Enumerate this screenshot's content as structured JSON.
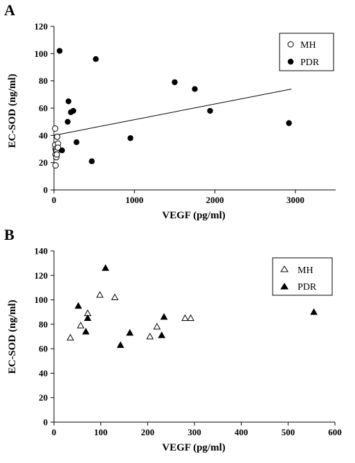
{
  "chart_data": [
    {
      "panel": "A",
      "type": "scatter",
      "xlabel": "VEGF (pg/ml)",
      "ylabel": "EC-SOD (ng/ml)",
      "xlim": [
        0,
        3500
      ],
      "ylim": [
        0,
        120
      ],
      "xticks": [
        "0",
        "1000",
        "2000",
        "3000"
      ],
      "yticks": [
        "0",
        "20",
        "40",
        "60",
        "80",
        "100",
        "120"
      ],
      "grid": false,
      "legend_position": "top-right",
      "series": [
        {
          "name": "MH",
          "marker": "open-circle",
          "points": [
            [
              15,
              45
            ],
            [
              15,
              33
            ],
            [
              20,
              30
            ],
            [
              25,
              29
            ],
            [
              30,
              28
            ],
            [
              20,
              26
            ],
            [
              30,
              24
            ],
            [
              20,
              18
            ],
            [
              40,
              39
            ],
            [
              50,
              34
            ],
            [
              35,
              26
            ],
            [
              50,
              31
            ]
          ]
        },
        {
          "name": "PDR",
          "marker": "filled-circle",
          "points": [
            [
              70,
              102
            ],
            [
              520,
              96
            ],
            [
              1500,
              79
            ],
            [
              1750,
              74
            ],
            [
              1940,
              58
            ],
            [
              2920,
              49
            ],
            [
              180,
              65
            ],
            [
              210,
              57
            ],
            [
              240,
              58
            ],
            [
              170,
              50
            ],
            [
              280,
              35
            ],
            [
              100,
              29
            ],
            [
              470,
              21
            ],
            [
              950,
              38
            ]
          ]
        }
      ],
      "trendline": {
        "from": [
          0,
          40
        ],
        "to": [
          2950,
          74
        ]
      }
    },
    {
      "panel": "B",
      "type": "scatter",
      "xlabel": "VEGF (pg/ml)",
      "ylabel": "EC-SOD (ng/ml)",
      "xlim": [
        0,
        600
      ],
      "ylim": [
        0,
        140
      ],
      "xticks": [
        "0",
        "100",
        "200",
        "300",
        "400",
        "500",
        "600"
      ],
      "yticks": [
        "0",
        "20",
        "40",
        "60",
        "80",
        "100",
        "120",
        "140"
      ],
      "grid": false,
      "legend_position": "top-right",
      "series": [
        {
          "name": "MH",
          "marker": "open-triangle",
          "points": [
            [
              35,
              69
            ],
            [
              57,
              79
            ],
            [
              72,
              89
            ],
            [
              98,
              104
            ],
            [
              130,
              102
            ],
            [
              205,
              70
            ],
            [
              220,
              78
            ],
            [
              280,
              85
            ],
            [
              292,
              85
            ]
          ]
        },
        {
          "name": "PDR",
          "marker": "filled-triangle",
          "points": [
            [
              52,
              95
            ],
            [
              68,
              74
            ],
            [
              72,
              85
            ],
            [
              110,
              126
            ],
            [
              142,
              63
            ],
            [
              162,
              73
            ],
            [
              230,
              71
            ],
            [
              235,
              86
            ],
            [
              555,
              90
            ]
          ]
        }
      ]
    }
  ],
  "colors": {
    "ink": "#000000",
    "background": "#ffffff"
  }
}
